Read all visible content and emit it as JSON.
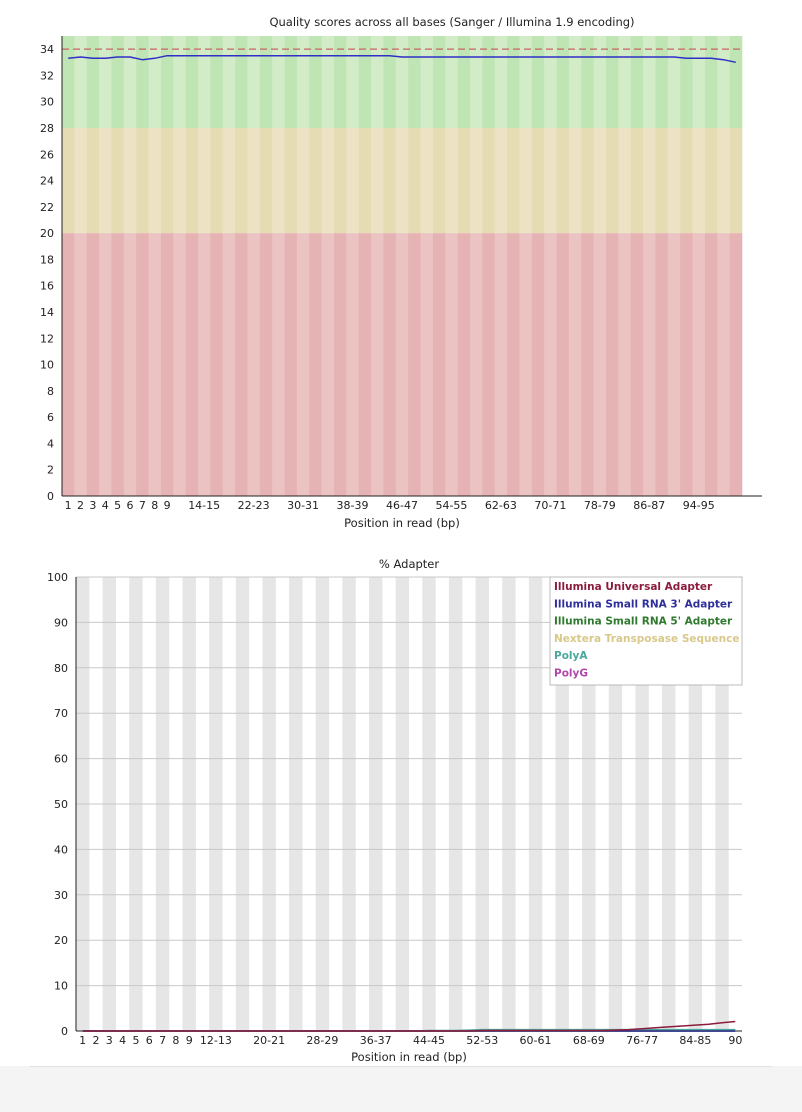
{
  "chart_data": [
    {
      "type": "line",
      "title": "Quality scores across all bases (Sanger / Illumina 1.9 encoding)",
      "xlabel": "Position in read (bp)",
      "ylabel": "",
      "ylim": [
        0,
        35
      ],
      "yticks": [
        0,
        2,
        4,
        6,
        8,
        10,
        12,
        14,
        16,
        18,
        20,
        22,
        24,
        26,
        28,
        30,
        32,
        34
      ],
      "categories": [
        "1",
        "2",
        "3",
        "4",
        "5",
        "6",
        "7",
        "8",
        "9",
        "10-11",
        "12-13",
        "14-15",
        "16-17",
        "18-19",
        "20-21",
        "22-23",
        "24-25",
        "26-27",
        "28-29",
        "30-31",
        "32-33",
        "34-35",
        "36-37",
        "38-39",
        "40-41",
        "42-43",
        "44-45",
        "46-47",
        "48-49",
        "50-51",
        "52-53",
        "54-55",
        "56-57",
        "58-59",
        "60-61",
        "62-63",
        "64-65",
        "66-67",
        "68-69",
        "70-71",
        "72-73",
        "74-75",
        "76-77",
        "78-79",
        "80-81",
        "82-83",
        "84-85",
        "86-87",
        "88-89",
        "90-91",
        "92-93",
        "94-95",
        "96-97",
        "98-99",
        "100"
      ],
      "visible_tick_labels": [
        "1",
        "2",
        "3",
        "4",
        "5",
        "6",
        "7",
        "8",
        "9",
        "14-15",
        "22-23",
        "30-31",
        "38-39",
        "46-47",
        "54-55",
        "62-63",
        "70-71",
        "78-79",
        "86-87",
        "94-95"
      ],
      "bands": [
        {
          "from": 28,
          "to": 35,
          "color": "#bfe5b4",
          "color_alt": "#d2ecc8"
        },
        {
          "from": 20,
          "to": 28,
          "color": "#e6dcb4",
          "color_alt": "#ede3c4"
        },
        {
          "from": 0,
          "to": 20,
          "color": "#e5b3b3",
          "color_alt": "#ebc3c3"
        }
      ],
      "reference_line": {
        "value": 34,
        "color": "#c86464",
        "style": "dashed"
      },
      "series": [
        {
          "color": "#2f2fc8",
          "values": [
            33.3,
            33.4,
            33.3,
            33.3,
            33.4,
            33.4,
            33.2,
            33.3,
            33.5,
            33.5,
            33.5,
            33.5,
            33.5,
            33.5,
            33.5,
            33.5,
            33.5,
            33.5,
            33.5,
            33.5,
            33.5,
            33.5,
            33.5,
            33.5,
            33.5,
            33.5,
            33.5,
            33.4,
            33.4,
            33.4,
            33.4,
            33.4,
            33.4,
            33.4,
            33.4,
            33.4,
            33.4,
            33.4,
            33.4,
            33.4,
            33.4,
            33.4,
            33.4,
            33.4,
            33.4,
            33.4,
            33.4,
            33.4,
            33.4,
            33.4,
            33.3,
            33.3,
            33.3,
            33.2,
            33.0
          ]
        }
      ]
    },
    {
      "type": "line",
      "title": "% Adapter",
      "xlabel": "Position in read (bp)",
      "ylabel": "",
      "ylim": [
        0,
        100
      ],
      "yticks": [
        0,
        10,
        20,
        30,
        40,
        50,
        60,
        70,
        80,
        90,
        100
      ],
      "categories": [
        "1",
        "2",
        "3",
        "4",
        "5",
        "6",
        "7",
        "8",
        "9",
        "10-11",
        "12-13",
        "14-15",
        "16-17",
        "18-19",
        "20-21",
        "22-23",
        "24-25",
        "26-27",
        "28-29",
        "30-31",
        "32-33",
        "34-35",
        "36-37",
        "38-39",
        "40-41",
        "42-43",
        "44-45",
        "46-47",
        "48-49",
        "50-51",
        "52-53",
        "54-55",
        "56-57",
        "58-59",
        "60-61",
        "62-63",
        "64-65",
        "66-67",
        "68-69",
        "70-71",
        "72-73",
        "74-75",
        "76-77",
        "78-79",
        "80-81",
        "82-83",
        "84-85",
        "86-87",
        "88-89",
        "90"
      ],
      "visible_tick_labels": [
        "1",
        "2",
        "3",
        "4",
        "5",
        "6",
        "7",
        "8",
        "9",
        "12-13",
        "20-21",
        "28-29",
        "36-37",
        "44-45",
        "52-53",
        "60-61",
        "68-69",
        "76-77",
        "84-85",
        "90"
      ],
      "legend_position": "top-right",
      "series": [
        {
          "name": "Illumina Universal Adapter",
          "color": "#8b1c3c",
          "values": [
            0,
            0,
            0,
            0,
            0,
            0,
            0,
            0,
            0,
            0,
            0,
            0,
            0,
            0,
            0,
            0,
            0,
            0,
            0,
            0,
            0,
            0,
            0,
            0,
            0,
            0,
            0,
            0,
            0,
            0,
            0.1,
            0.1,
            0.1,
            0.1,
            0.1,
            0.1,
            0.1,
            0.1,
            0.1,
            0.1,
            0.2,
            0.3,
            0.5,
            0.7,
            0.9,
            1.1,
            1.3,
            1.5,
            1.8,
            2.1
          ]
        },
        {
          "name": "Illumina Small RNA 3' Adapter",
          "color": "#2f2f9c",
          "values": [
            0,
            0,
            0,
            0,
            0,
            0,
            0,
            0,
            0,
            0,
            0,
            0,
            0,
            0,
            0,
            0,
            0,
            0,
            0,
            0,
            0,
            0,
            0,
            0,
            0,
            0,
            0,
            0,
            0,
            0,
            0,
            0,
            0,
            0,
            0,
            0,
            0,
            0,
            0,
            0,
            0,
            0,
            0,
            0,
            0,
            0,
            0,
            0,
            0,
            0
          ]
        },
        {
          "name": "Illumina Small RNA 5' Adapter",
          "color": "#2f7a2f",
          "values": [
            0,
            0,
            0,
            0,
            0,
            0,
            0,
            0,
            0,
            0,
            0,
            0,
            0,
            0,
            0,
            0,
            0,
            0,
            0,
            0,
            0,
            0,
            0,
            0,
            0,
            0,
            0,
            0,
            0,
            0,
            0,
            0,
            0,
            0,
            0,
            0,
            0,
            0,
            0,
            0,
            0,
            0,
            0,
            0,
            0,
            0,
            0,
            0,
            0,
            0
          ]
        },
        {
          "name": "Nextera Transposase Sequence",
          "color": "#d8c88a",
          "values": [
            0,
            0,
            0,
            0,
            0,
            0,
            0,
            0,
            0,
            0,
            0,
            0,
            0,
            0,
            0,
            0,
            0,
            0,
            0,
            0,
            0,
            0,
            0,
            0,
            0,
            0,
            0,
            0,
            0,
            0,
            0,
            0,
            0,
            0,
            0,
            0,
            0,
            0,
            0,
            0,
            0,
            0,
            0,
            0,
            0,
            0,
            0,
            0,
            0,
            0
          ]
        },
        {
          "name": "PolyA",
          "color": "#4aa79b",
          "values": [
            0,
            0,
            0,
            0,
            0,
            0,
            0,
            0,
            0,
            0,
            0,
            0,
            0,
            0,
            0,
            0,
            0,
            0,
            0,
            0,
            0,
            0,
            0,
            0,
            0,
            0,
            0.1,
            0.1,
            0.1,
            0.2,
            0.3,
            0.3,
            0.3,
            0.3,
            0.3,
            0.3,
            0.3,
            0.3,
            0.3,
            0.3,
            0.3,
            0.3,
            0.3,
            0.3,
            0.3,
            0.3,
            0.3,
            0.3,
            0.3,
            0.3
          ]
        },
        {
          "name": "PolyG",
          "color": "#b048a8",
          "values": [
            0,
            0,
            0,
            0,
            0,
            0,
            0,
            0,
            0,
            0,
            0,
            0,
            0,
            0,
            0,
            0,
            0,
            0,
            0,
            0,
            0,
            0,
            0,
            0,
            0,
            0,
            0,
            0,
            0,
            0,
            0,
            0,
            0,
            0,
            0,
            0,
            0,
            0,
            0,
            0,
            0,
            0,
            0,
            0,
            0,
            0,
            0,
            0,
            0,
            0
          ]
        }
      ]
    }
  ]
}
